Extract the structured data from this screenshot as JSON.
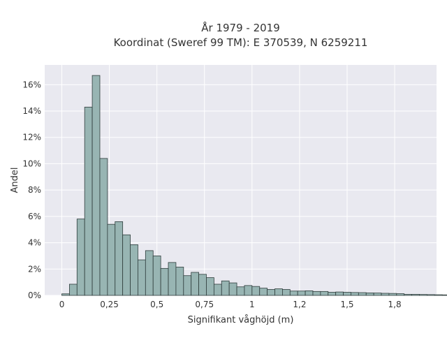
{
  "chart_data": {
    "type": "bar",
    "title_lines": [
      "År 1979 - 2019",
      "Koordinat (Sweref 99 TM): E 370539, N 6259211"
    ],
    "xlabel": "Signifikant våghöjd (m)",
    "ylabel": "Andel",
    "xlim": [
      -0.09,
      1.97
    ],
    "ylim": [
      0,
      0.175
    ],
    "grid": true,
    "bin_width": 0.04,
    "bin_start": 0.0,
    "values": [
      0.0012,
      0.0085,
      0.058,
      0.143,
      0.167,
      0.104,
      0.054,
      0.056,
      0.046,
      0.0385,
      0.027,
      0.034,
      0.03,
      0.0205,
      0.025,
      0.0215,
      0.015,
      0.0175,
      0.016,
      0.0135,
      0.0085,
      0.011,
      0.0095,
      0.0065,
      0.0075,
      0.0068,
      0.0055,
      0.0045,
      0.005,
      0.0045,
      0.0033,
      0.0033,
      0.0035,
      0.003,
      0.003,
      0.0024,
      0.0026,
      0.0024,
      0.0022,
      0.0021,
      0.0019,
      0.0018,
      0.0016,
      0.0015,
      0.0013,
      0.0008,
      0.0008,
      0.0007,
      0.0006,
      0.0005,
      0.0004,
      0.0003
    ],
    "xticks": [
      {
        "value": 0,
        "label": "0"
      },
      {
        "value": 0.25,
        "label": "0,25"
      },
      {
        "value": 0.5,
        "label": "0,5"
      },
      {
        "value": 0.75,
        "label": "0,75"
      },
      {
        "value": 1.0,
        "label": "1"
      },
      {
        "value": 1.25,
        "label": "1,2"
      },
      {
        "value": 1.5,
        "label": "1,5"
      },
      {
        "value": 1.75,
        "label": "1,8"
      }
    ],
    "yticks": [
      {
        "value": 0,
        "label": "0%"
      },
      {
        "value": 0.02,
        "label": "2%"
      },
      {
        "value": 0.04,
        "label": "4%"
      },
      {
        "value": 0.06,
        "label": "6%"
      },
      {
        "value": 0.08,
        "label": "8%"
      },
      {
        "value": 0.1,
        "label": "10%"
      },
      {
        "value": 0.12,
        "label": "12%"
      },
      {
        "value": 0.14,
        "label": "14%"
      },
      {
        "value": 0.16,
        "label": "16%"
      }
    ],
    "colors": {
      "plot_background": "#e9e9f0",
      "grid": "#ffffff",
      "bar_fill": "#98b5b3",
      "bar_edge": "#2f3d3c"
    }
  }
}
